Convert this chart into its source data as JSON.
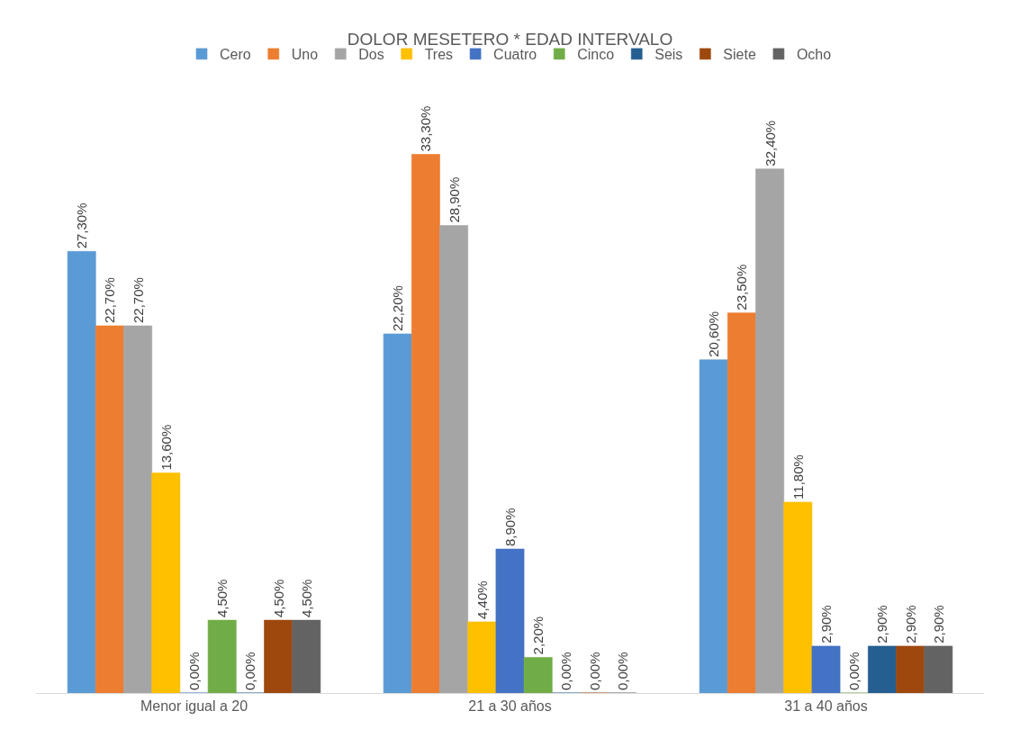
{
  "chart_data": {
    "type": "bar",
    "title": "DOLOR MESETERO * EDAD INTERVALO",
    "categories": [
      "Menor igual a 20",
      "21 a 30 años",
      "31 a 40 años"
    ],
    "series": [
      {
        "name": "Cero",
        "color": "#5b9bd5",
        "values": [
          27.3,
          22.2,
          20.6
        ],
        "value_labels": [
          "27,30%",
          "22,20%",
          "20,60%"
        ]
      },
      {
        "name": "Uno",
        "color": "#ed7d31",
        "values": [
          22.7,
          33.3,
          23.5
        ],
        "value_labels": [
          "22,70%",
          "33,30%",
          "23,50%"
        ]
      },
      {
        "name": "Dos",
        "color": "#a5a5a5",
        "values": [
          22.7,
          28.9,
          32.4
        ],
        "value_labels": [
          "22,70%",
          "28,90%",
          "32,40%"
        ]
      },
      {
        "name": "Tres",
        "color": "#ffc000",
        "values": [
          13.6,
          4.4,
          11.8
        ],
        "value_labels": [
          "13,60%",
          "4,40%",
          "11,80%"
        ]
      },
      {
        "name": "Cuatro",
        "color": "#4472c4",
        "values": [
          0,
          8.9,
          2.9
        ],
        "value_labels": [
          "0,00%",
          "8,90%",
          "2,90%"
        ]
      },
      {
        "name": "Cinco",
        "color": "#70ad47",
        "values": [
          4.5,
          2.2,
          0
        ],
        "value_labels": [
          "4,50%",
          "2,20%",
          "0,00%"
        ]
      },
      {
        "name": "Seis",
        "color": "#255e91",
        "values": [
          0,
          0,
          2.9
        ],
        "value_labels": [
          "0,00%",
          "0,00%",
          "2,90%"
        ]
      },
      {
        "name": "Siete",
        "color": "#9e480e",
        "values": [
          4.5,
          0,
          2.9
        ],
        "value_labels": [
          "4,50%",
          "0,00%",
          "2,90%"
        ]
      },
      {
        "name": "Ocho",
        "color": "#636363",
        "values": [
          4.5,
          0,
          2.9
        ],
        "value_labels": [
          "4,50%",
          "0,00%",
          "2,90%"
        ]
      }
    ],
    "legend": "top"
  }
}
